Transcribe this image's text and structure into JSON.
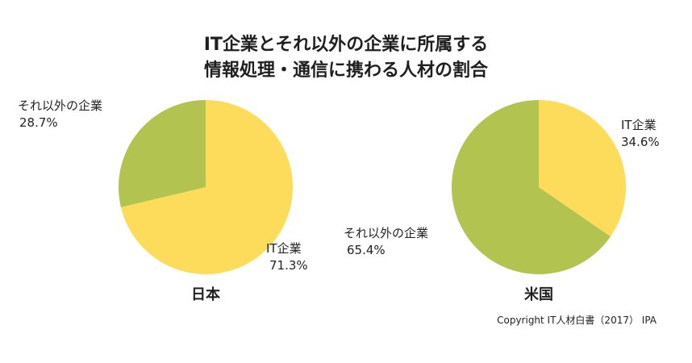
{
  "title": {
    "line1": "IT企業とそれ以外の企業に所属する",
    "line2": "情報処理・通信に携わる人材の割合"
  },
  "chart_data": [
    {
      "type": "pie",
      "caption": "日本",
      "slices": [
        {
          "label": "IT企業",
          "value": 71.3,
          "display": "71.3%",
          "color": "#fddc5c"
        },
        {
          "label": "それ以外の企業",
          "value": 28.7,
          "display": "28.7%",
          "color": "#b3c34f"
        }
      ]
    },
    {
      "type": "pie",
      "caption": "米国",
      "slices": [
        {
          "label": "IT企業",
          "value": 34.6,
          "display": "34.6%",
          "color": "#fddc5c"
        },
        {
          "label": "それ以外の企業",
          "value": 65.4,
          "display": "65.4%",
          "color": "#b3c34f"
        }
      ]
    }
  ],
  "copyright": "Copyright IT人材白書（2017） IPA"
}
